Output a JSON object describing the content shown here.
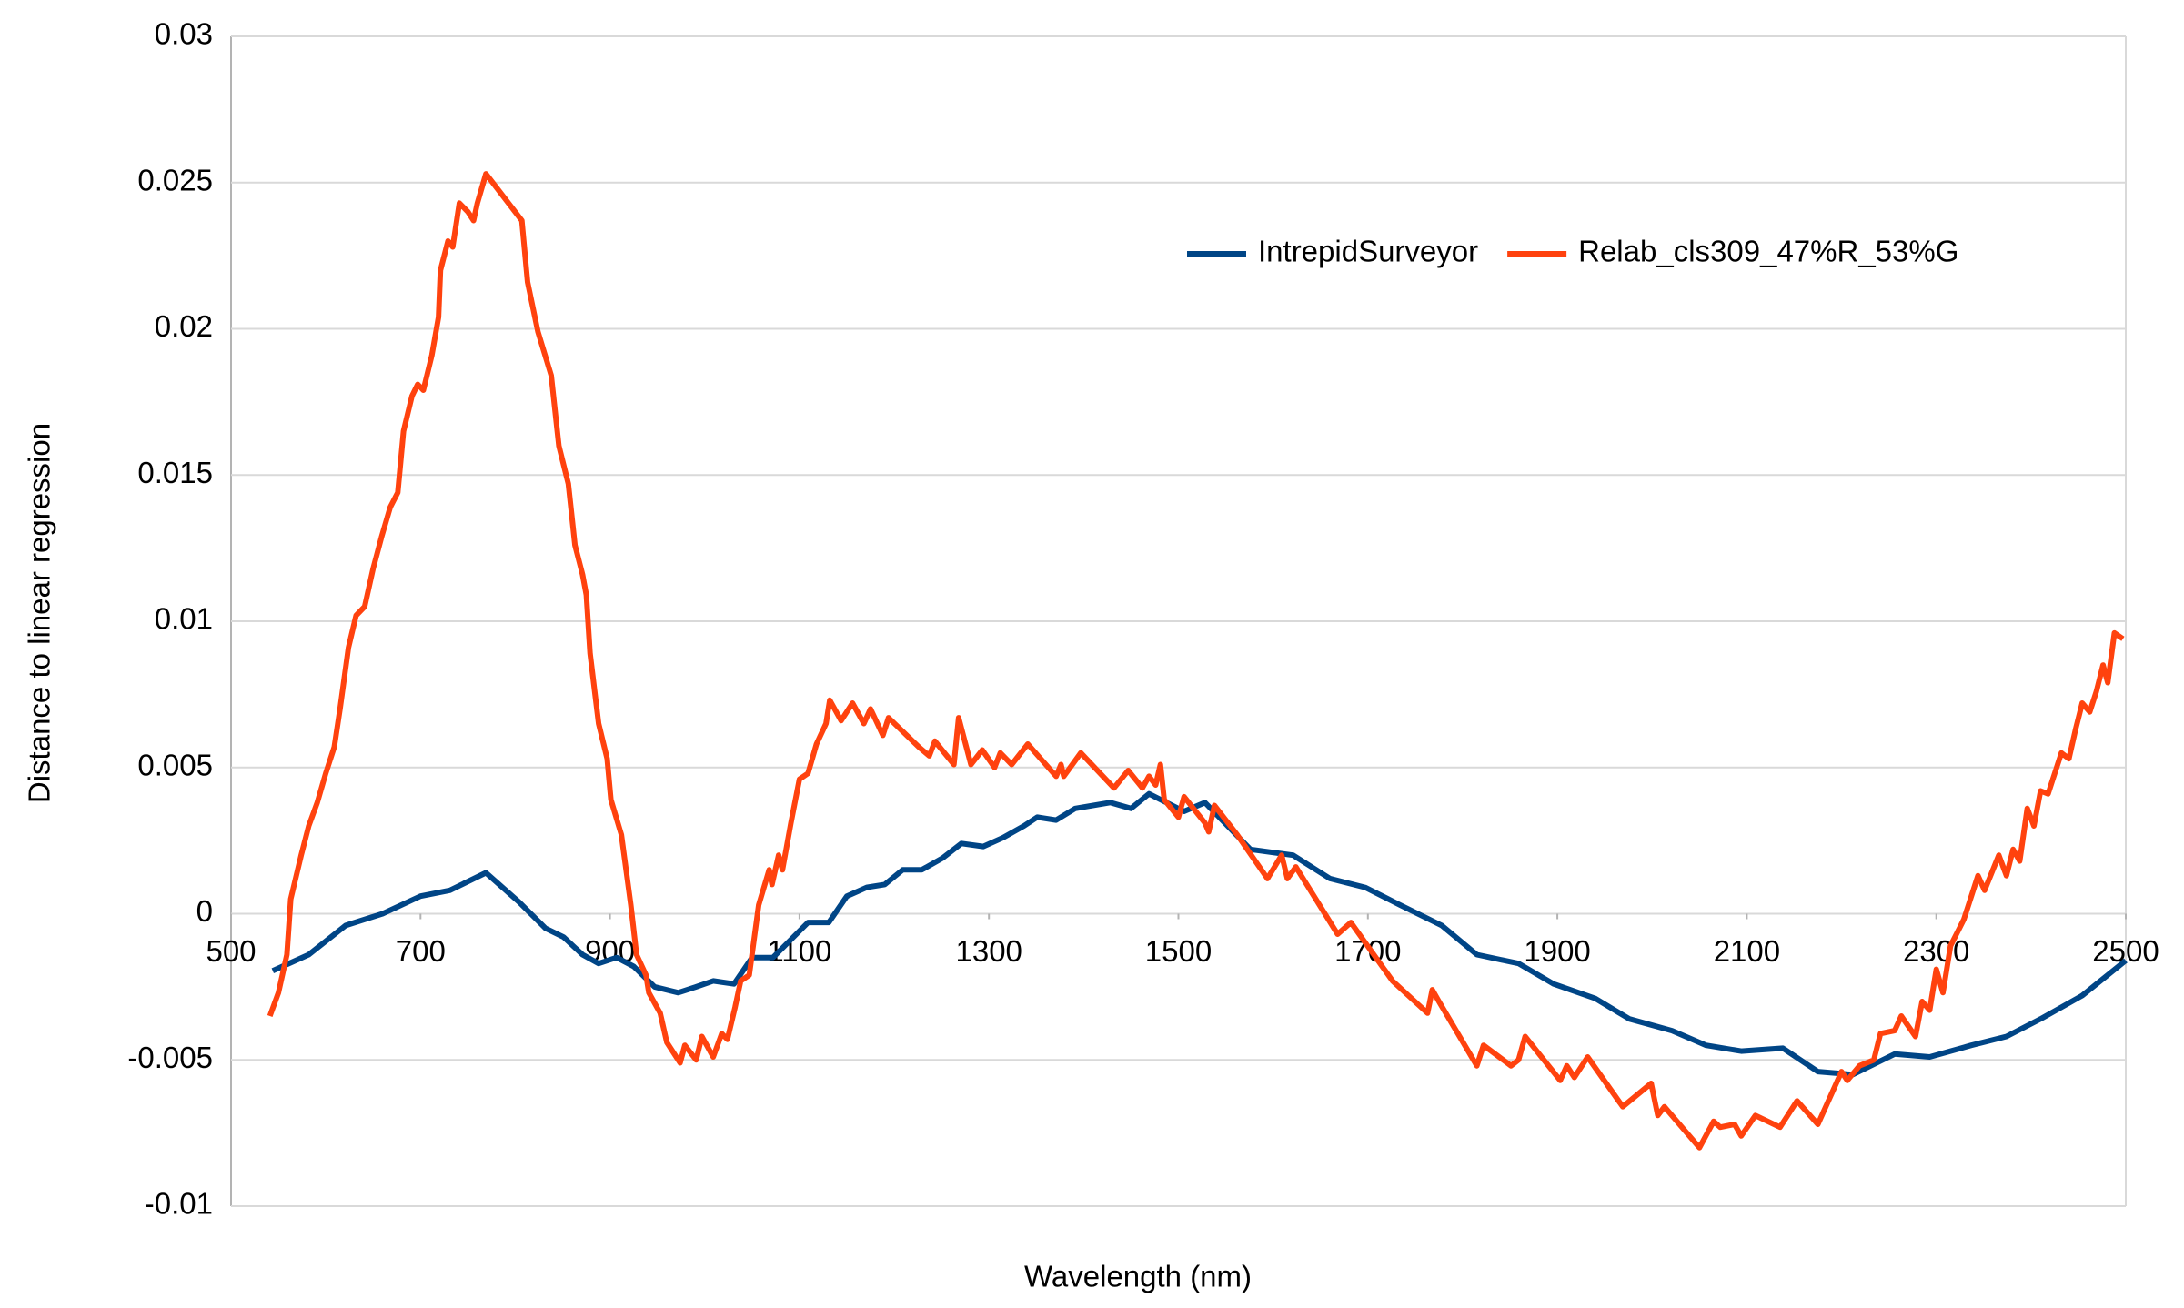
{
  "chart_data": {
    "type": "line",
    "x_label": "Wavelength (nm)",
    "y_label": "Distance to linear regression",
    "xlim": [
      500,
      2500
    ],
    "xticks": [
      500,
      700,
      900,
      1100,
      1300,
      1500,
      1700,
      1900,
      2100,
      2300,
      2500
    ],
    "ylim": [
      -0.01,
      0.03
    ],
    "yticks": [
      -0.01,
      -0.005,
      0,
      0.005,
      0.01,
      0.015,
      0.02,
      0.025,
      0.03
    ],
    "grid": true,
    "legend": "top-right",
    "series": [
      {
        "name": "IntrepidSurveyor",
        "color": "#004586",
        "x": [
          544,
          582,
          621,
          660,
          700,
          731,
          769,
          804,
          832,
          851,
          871,
          888,
          907,
          925,
          947,
          972,
          991,
          1009,
          1031,
          1050,
          1072,
          1109,
          1131,
          1150,
          1171,
          1190,
          1209,
          1229,
          1251,
          1271,
          1294,
          1315,
          1337,
          1351,
          1371,
          1391,
          1428,
          1450,
          1469,
          1506,
          1528,
          1576,
          1621,
          1660,
          1697,
          1734,
          1778,
          1815,
          1859,
          1896,
          1940,
          1976,
          2021,
          2057,
          2094,
          2138,
          2175,
          2212,
          2256,
          2293,
          2337,
          2374,
          2410,
          2454,
          2500
        ],
        "values": [
          -0.00195,
          -0.0014,
          -0.0004,
          0,
          0.0006,
          0.0008,
          0.0014,
          0.0004,
          -0.0005,
          -0.0008,
          -0.0014,
          -0.0017,
          -0.0015,
          -0.0018,
          -0.0025,
          -0.0027,
          -0.0025,
          -0.0023,
          -0.0024,
          -0.0015,
          -0.0015,
          -0.0003,
          -0.0003,
          0.0006,
          0.0009,
          0.001,
          0.0015,
          0.0015,
          0.0019,
          0.0024,
          0.0023,
          0.0026,
          0.003,
          0.0033,
          0.0032,
          0.0036,
          0.0038,
          0.0036,
          0.0041,
          0.0035,
          0.0038,
          0.0022,
          0.002,
          0.0012,
          0.0009,
          0.0003,
          -0.0004,
          -0.0014,
          -0.0017,
          -0.0024,
          -0.0029,
          -0.0036,
          -0.004,
          -0.0045,
          -0.0047,
          -0.0046,
          -0.0054,
          -0.0055,
          -0.0048,
          -0.0049,
          -0.0045,
          -0.0042,
          -0.0036,
          -0.0028,
          -0.0016
        ]
      },
      {
        "name": "Relab_cls309_47%R_53%G",
        "color": "#ff420e",
        "x": [
          541,
          550,
          559,
          563,
          574,
          582,
          591,
          600,
          609,
          615,
          624,
          632,
          641,
          650,
          659,
          668,
          676,
          682,
          691,
          697,
          703,
          712,
          719,
          721,
          729,
          734,
          741,
          750,
          756,
          760,
          769,
          807,
          813,
          824,
          838,
          846,
          856,
          863,
          871,
          875,
          879,
          888,
          897,
          901,
          912,
          922,
          928,
          938,
          941,
          953,
          960,
          974,
          979,
          991,
          997,
          1009,
          1018,
          1024,
          1032,
          1038,
          1047,
          1057,
          1068,
          1071,
          1078,
          1082,
          1091,
          1100,
          1109,
          1118,
          1128,
          1132,
          1144,
          1156,
          1168,
          1175,
          1188,
          1194,
          1226,
          1237,
          1243,
          1263,
          1268,
          1281,
          1293,
          1306,
          1312,
          1324,
          1341,
          1371,
          1376,
          1379,
          1397,
          1432,
          1447,
          1462,
          1469,
          1476,
          1481,
          1485,
          1500,
          1506,
          1528,
          1532,
          1538,
          1562,
          1594,
          1609,
          1615,
          1624,
          1668,
          1682,
          1726,
          1763,
          1768,
          1775,
          1815,
          1822,
          1851,
          1859,
          1866,
          1903,
          1910,
          1918,
          1932,
          1969,
          1999,
          2006,
          2013,
          2050,
          2065,
          2072,
          2087,
          2094,
          2109,
          2135,
          2153,
          2175,
          2200,
          2206,
          2219,
          2234,
          2241,
          2256,
          2263,
          2278,
          2285,
          2293,
          2300,
          2307,
          2315,
          2329,
          2344,
          2351,
          2366,
          2374,
          2381,
          2388,
          2396,
          2403,
          2410,
          2418,
          2432,
          2440,
          2447,
          2454,
          2462,
          2469,
          2476,
          2481,
          2488,
          2497
        ],
        "values": [
          -0.0035,
          -0.0027,
          -0.0014,
          0.0005,
          0.002,
          0.003,
          0.0038,
          0.0048,
          0.0057,
          0.007,
          0.0091,
          0.0102,
          0.0105,
          0.0118,
          0.0129,
          0.0139,
          0.0144,
          0.0165,
          0.0177,
          0.0181,
          0.0179,
          0.0191,
          0.0204,
          0.022,
          0.023,
          0.0228,
          0.0243,
          0.024,
          0.0237,
          0.0243,
          0.0253,
          0.0237,
          0.0216,
          0.0199,
          0.0184,
          0.016,
          0.0147,
          0.0126,
          0.0116,
          0.0109,
          0.0089,
          0.0065,
          0.0053,
          0.0039,
          0.0027,
          0.0003,
          -0.0014,
          -0.0021,
          -0.0027,
          -0.0034,
          -0.0044,
          -0.0051,
          -0.0045,
          -0.005,
          -0.0042,
          -0.0049,
          -0.0041,
          -0.0043,
          -0.0032,
          -0.0023,
          -0.0021,
          0.0003,
          0.0015,
          0.001,
          0.002,
          0.0015,
          0.0031,
          0.0046,
          0.0048,
          0.0058,
          0.0065,
          0.0073,
          0.0066,
          0.0072,
          0.0065,
          0.007,
          0.0061,
          0.0067,
          0.0057,
          0.0054,
          0.0059,
          0.0051,
          0.0067,
          0.0051,
          0.0056,
          0.005,
          0.0055,
          0.0051,
          0.0058,
          0.0047,
          0.0051,
          0.0047,
          0.0055,
          0.0043,
          0.0049,
          0.0043,
          0.0047,
          0.0044,
          0.0051,
          0.0039,
          0.0033,
          0.004,
          0.0031,
          0.0028,
          0.0037,
          0.0027,
          0.0012,
          0.002,
          0.0012,
          0.0016,
          -0.0007,
          -0.0003,
          -0.0023,
          -0.0034,
          -0.0026,
          -0.003,
          -0.0052,
          -0.0045,
          -0.0052,
          -0.005,
          -0.0042,
          -0.0057,
          -0.0052,
          -0.0056,
          -0.0049,
          -0.0066,
          -0.0058,
          -0.0069,
          -0.0066,
          -0.008,
          -0.0071,
          -0.0073,
          -0.0072,
          -0.0076,
          -0.0069,
          -0.0073,
          -0.0064,
          -0.0072,
          -0.0054,
          -0.0057,
          -0.0052,
          -0.005,
          -0.0041,
          -0.004,
          -0.0035,
          -0.0042,
          -0.003,
          -0.0033,
          -0.0019,
          -0.0027,
          -0.0011,
          -0.0002,
          0.0013,
          0.0008,
          0.002,
          0.0013,
          0.0022,
          0.0018,
          0.0036,
          0.003,
          0.0042,
          0.0041,
          0.0055,
          0.0053,
          0.0063,
          0.0072,
          0.0069,
          0.0076,
          0.0085,
          0.0079,
          0.0096,
          0.0094
        ]
      }
    ]
  }
}
